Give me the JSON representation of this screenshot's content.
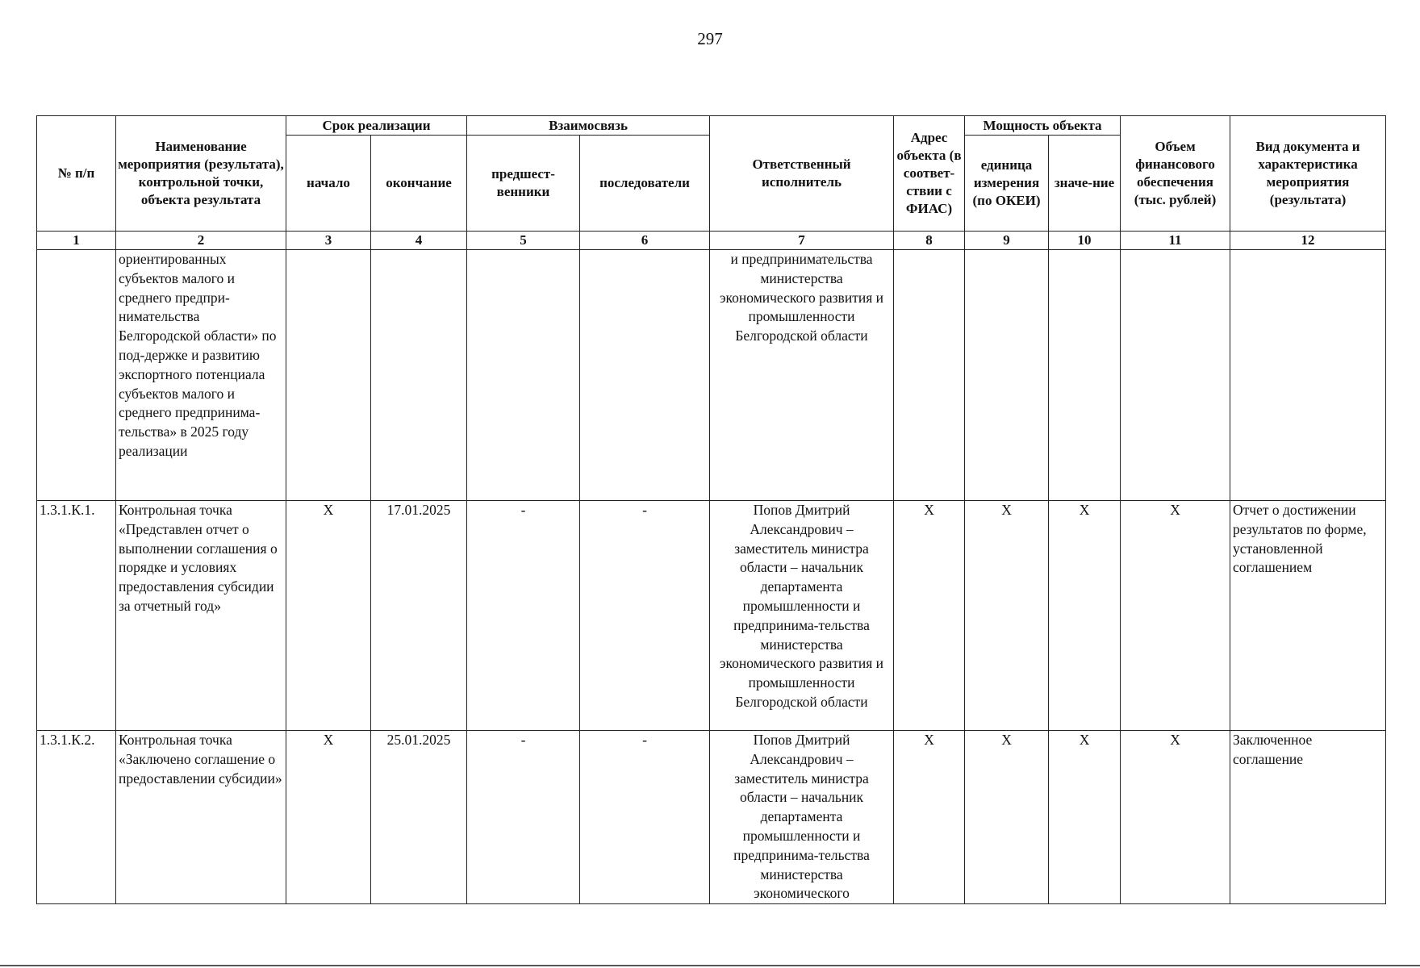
{
  "page_number": "297",
  "table": {
    "headers": {
      "num": "№ п/п",
      "name": "Наименование мероприятия (результата), контрольной точки, объекта результата",
      "term_group": "Срок реализации",
      "start": "начало",
      "end": "окончание",
      "link_group": "Взаимосвязь",
      "predecessors": "предшест-венники",
      "successors": "последователи",
      "responsible": "Ответственный исполнитель",
      "address": "Адрес объекта (в соответ-ствии с ФИАС)",
      "capacity_group": "Мощность объекта",
      "unit": "единица измерения (по ОКЕИ)",
      "value": "значе-ние",
      "funding": "Объем финансового обеспечения (тыс. рублей)",
      "doc": "Вид документа и характеристика мероприятия (результата)"
    },
    "column_numbers": [
      "1",
      "2",
      "3",
      "4",
      "5",
      "6",
      "7",
      "8",
      "9",
      "10",
      "11",
      "12"
    ],
    "rows": [
      {
        "num": "",
        "name": "ориентированных субъектов малого и среднего предпри-нимательства Белгородской области» по под-держке и развитию экспортного потенциала субъектов малого и среднего предпринима-тельства» в 2025 году реализации",
        "start": "",
        "end": "",
        "pred": "",
        "succ": "",
        "responsible": "и предпринимательства министерства экономического развития и промышленности Белгородской области",
        "address": "",
        "unit": "",
        "value": "",
        "funding": "",
        "doc": ""
      },
      {
        "num": "1.3.1.К.1.",
        "name": "Контрольная точка «Представлен отчет о выполнении соглашения о порядке и условиях предоставления субсидии за отчетный год»",
        "start": "X",
        "end": "17.01.2025",
        "pred": "-",
        "succ": "-",
        "responsible": "Попов Дмитрий Александрович – заместитель министра области – начальник департамента промышленности и предпринима-тельства министерства экономического развития и промышленности Белгородской области",
        "address": "X",
        "unit": "X",
        "value": "X",
        "funding": "X",
        "doc": "Отчет о достижении результатов по форме, установленной соглашением"
      },
      {
        "num": "1.3.1.К.2.",
        "name": "Контрольная точка «Заключено соглашение о предоставлении субсидии»",
        "start": "X",
        "end": "25.01.2025",
        "pred": "-",
        "succ": "-",
        "responsible": "Попов Дмитрий Александрович – заместитель министра области – начальник департамента промышленности и предпринима-тельства министерства экономического",
        "address": "X",
        "unit": "X",
        "value": "X",
        "funding": "X",
        "doc": "Заключенное соглашение"
      }
    ]
  }
}
